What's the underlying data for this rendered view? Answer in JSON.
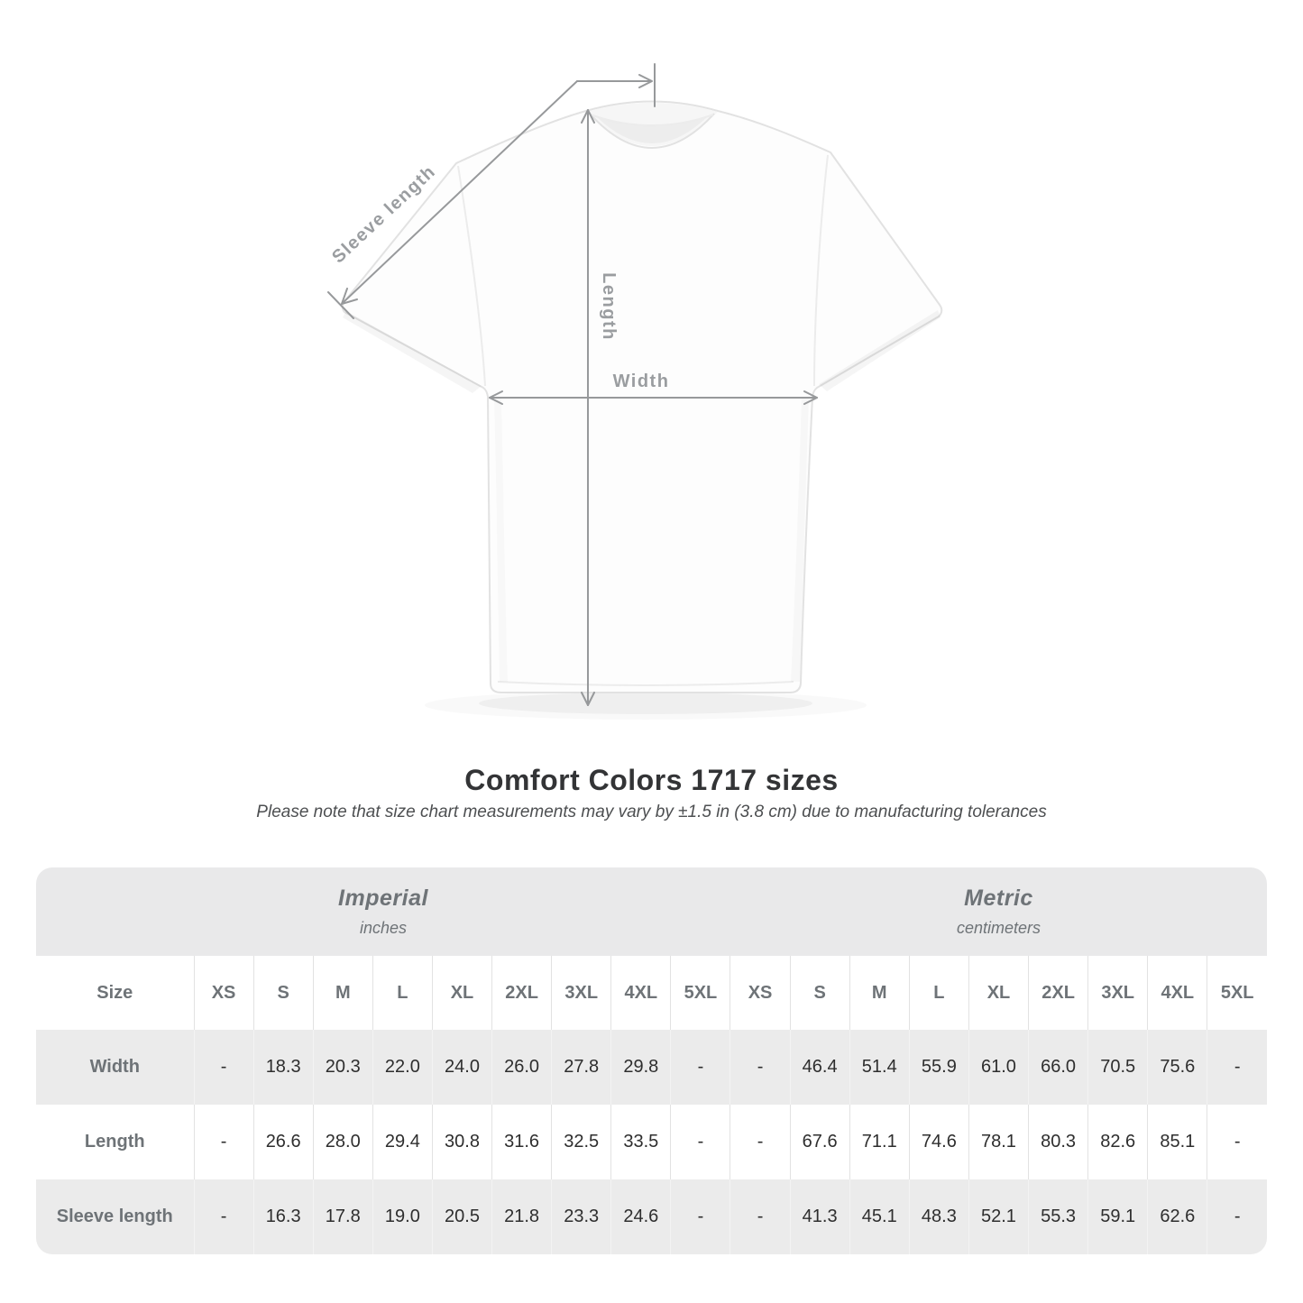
{
  "page": {
    "title": "Comfort Colors 1717 sizes",
    "subtitle": "Please note that size chart measurements may vary by ±1.5 in (3.8 cm) due to manufacturing tolerances"
  },
  "diagram": {
    "sleeve_label": "Sleeve length",
    "length_label": "Length",
    "width_label": "Width",
    "line_color": "#97999b"
  },
  "size_table": {
    "corner_label": "Size",
    "sizes": [
      "XS",
      "S",
      "M",
      "L",
      "XL",
      "2XL",
      "3XL",
      "4XL",
      "5XL"
    ],
    "sections": [
      {
        "name": "Imperial",
        "unit": "inches"
      },
      {
        "name": "Metric",
        "unit": "centimeters"
      }
    ],
    "rows": [
      {
        "label": "Width",
        "imperial": [
          "-",
          "18.3",
          "20.3",
          "22.0",
          "24.0",
          "26.0",
          "27.8",
          "29.8",
          "-"
        ],
        "metric": [
          "-",
          "46.4",
          "51.4",
          "55.9",
          "61.0",
          "66.0",
          "70.5",
          "75.6",
          "-"
        ]
      },
      {
        "label": "Length",
        "imperial": [
          "-",
          "26.6",
          "28.0",
          "29.4",
          "30.8",
          "31.6",
          "32.5",
          "33.5",
          "-"
        ],
        "metric": [
          "-",
          "67.6",
          "71.1",
          "74.6",
          "78.1",
          "80.3",
          "82.6",
          "85.1",
          "-"
        ]
      },
      {
        "label": "Sleeve length",
        "imperial": [
          "-",
          "16.3",
          "17.8",
          "19.0",
          "20.5",
          "21.8",
          "23.3",
          "24.6",
          "-"
        ],
        "metric": [
          "-",
          "41.3",
          "45.1",
          "48.3",
          "52.1",
          "55.3",
          "59.1",
          "62.6",
          "-"
        ]
      }
    ],
    "colors": {
      "band_bg": "#e9e9ea",
      "stripe_bg": "#ebebeb",
      "label_text": "#6e7377",
      "value_text": "#2e2e2e",
      "divider": "#e2e2e2"
    }
  },
  "chart_data": {
    "type": "table",
    "title": "Comfort Colors 1717 sizes",
    "note": "Please note that size chart measurements may vary by ±1.5 in (3.8 cm) due to manufacturing tolerances",
    "columns": [
      "XS",
      "S",
      "M",
      "L",
      "XL",
      "2XL",
      "3XL",
      "4XL",
      "5XL"
    ],
    "units": [
      "inches",
      "centimeters"
    ],
    "series": [
      {
        "name": "Width (inches)",
        "values": [
          null,
          18.3,
          20.3,
          22.0,
          24.0,
          26.0,
          27.8,
          29.8,
          null
        ]
      },
      {
        "name": "Length (inches)",
        "values": [
          null,
          26.6,
          28.0,
          29.4,
          30.8,
          31.6,
          32.5,
          33.5,
          null
        ]
      },
      {
        "name": "Sleeve length (inches)",
        "values": [
          null,
          16.3,
          17.8,
          19.0,
          20.5,
          21.8,
          23.3,
          24.6,
          null
        ]
      },
      {
        "name": "Width (centimeters)",
        "values": [
          null,
          46.4,
          51.4,
          55.9,
          61.0,
          66.0,
          70.5,
          75.6,
          null
        ]
      },
      {
        "name": "Length (centimeters)",
        "values": [
          null,
          67.6,
          71.1,
          74.6,
          78.1,
          80.3,
          82.6,
          85.1,
          null
        ]
      },
      {
        "name": "Sleeve length (centimeters)",
        "values": [
          null,
          41.3,
          45.1,
          48.3,
          52.1,
          55.3,
          59.1,
          62.6,
          null
        ]
      }
    ]
  }
}
